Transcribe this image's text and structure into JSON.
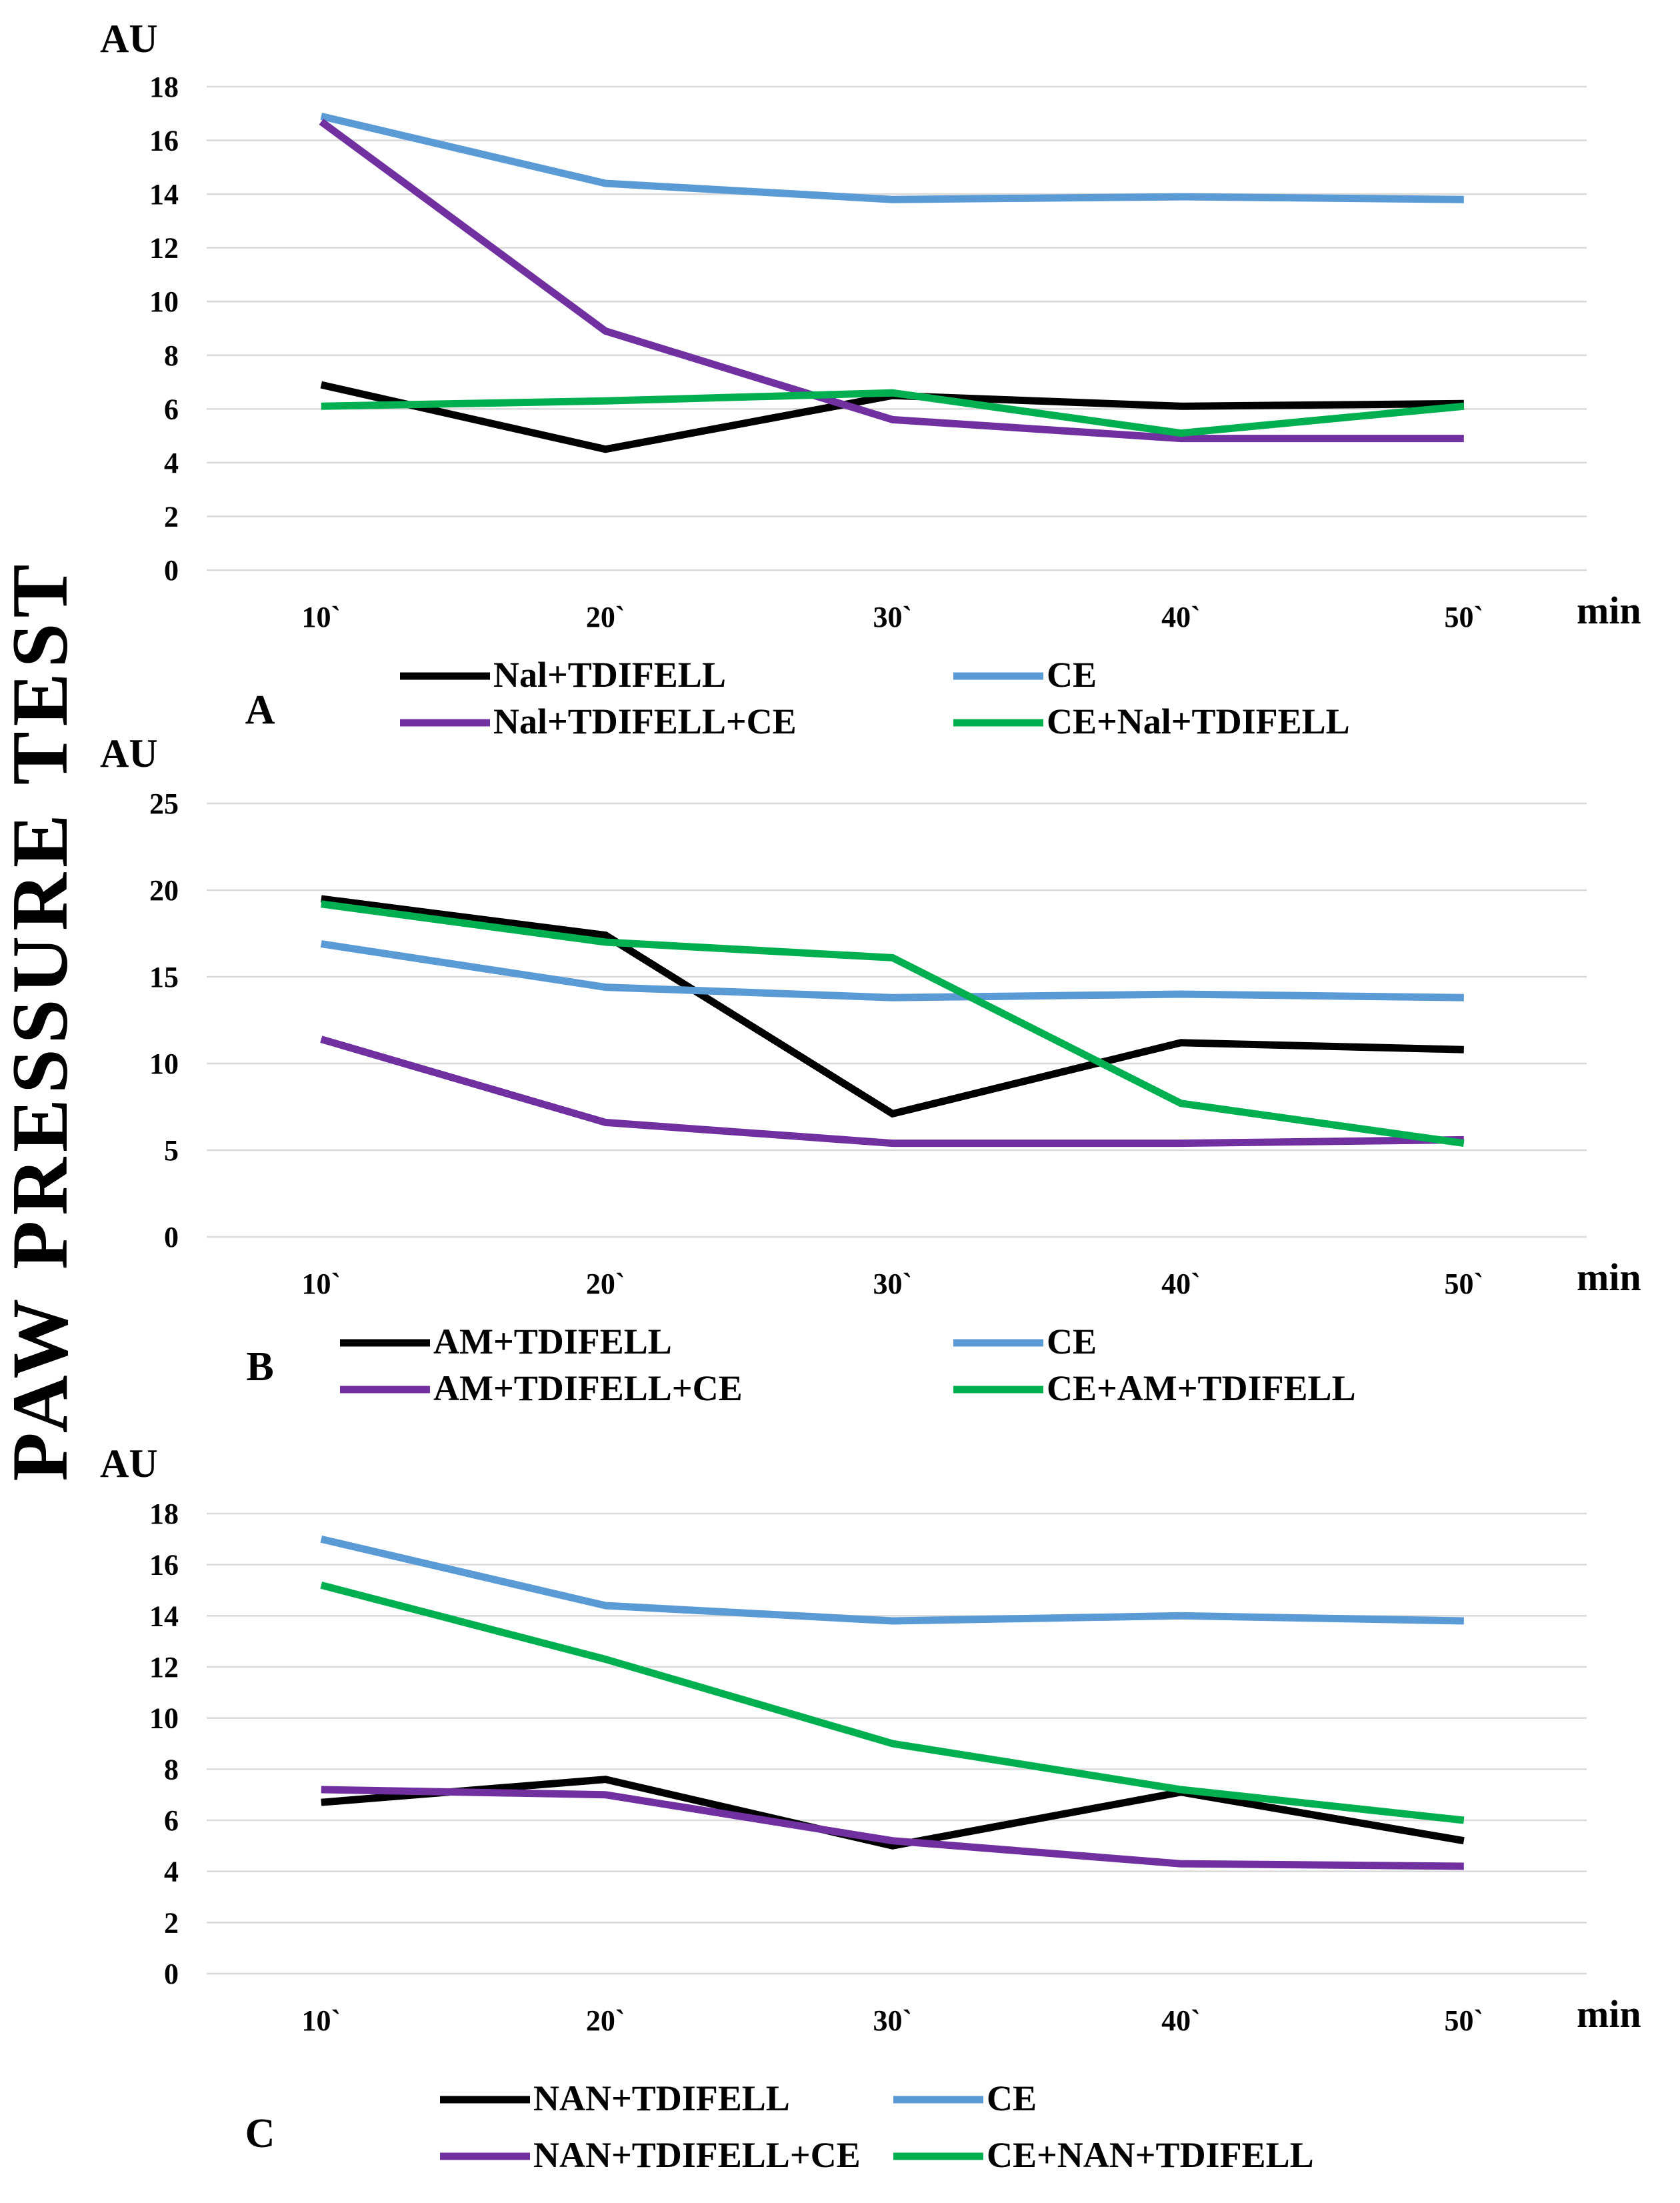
{
  "figure_title": "PAW   PRESSURE   TEST",
  "chart_data": [
    {
      "type": "line",
      "panel": "A",
      "ylabel": "AU",
      "xlabel": "min",
      "categories": [
        "10`",
        "20`",
        "30`",
        "40`",
        "50`"
      ],
      "ylim": [
        0,
        18
      ],
      "yticks": [
        0,
        2,
        4,
        6,
        8,
        10,
        12,
        14,
        16,
        18
      ],
      "grid": true,
      "series": [
        {
          "name": "Nal+TDIFELL",
          "color": "#000000",
          "values": [
            6.9,
            4.5,
            6.5,
            6.1,
            6.2
          ]
        },
        {
          "name": "CE",
          "color": "#5b9bd5",
          "values": [
            16.9,
            14.4,
            13.8,
            13.9,
            13.8
          ]
        },
        {
          "name": "Nal+TDIFELL+CE",
          "color": "#7030a0",
          "values": [
            16.7,
            8.9,
            5.6,
            4.9,
            4.9
          ]
        },
        {
          "name": "CE+Nal+TDIFELL",
          "color": "#00b050",
          "values": [
            6.1,
            6.3,
            6.6,
            5.1,
            6.1
          ]
        }
      ]
    },
    {
      "type": "line",
      "panel": "B",
      "ylabel": "AU",
      "xlabel": "min",
      "categories": [
        "10`",
        "20`",
        "30`",
        "40`",
        "50`"
      ],
      "ylim": [
        0,
        25
      ],
      "yticks": [
        0,
        5,
        10,
        15,
        20,
        25
      ],
      "grid": true,
      "series": [
        {
          "name": "AM+TDIFELL",
          "color": "#000000",
          "values": [
            19.5,
            17.4,
            7.1,
            11.2,
            10.8
          ]
        },
        {
          "name": "CE",
          "color": "#5b9bd5",
          "values": [
            16.9,
            14.4,
            13.8,
            14.0,
            13.8
          ]
        },
        {
          "name": "AM+TDIFELL+CE",
          "color": "#7030a0",
          "values": [
            11.4,
            6.6,
            5.4,
            5.4,
            5.6
          ]
        },
        {
          "name": "CE+AM+TDIFELL",
          "color": "#00b050",
          "values": [
            19.2,
            17.0,
            16.1,
            7.7,
            5.4
          ]
        }
      ]
    },
    {
      "type": "line",
      "panel": "C",
      "ylabel": "AU",
      "xlabel": "min",
      "categories": [
        "10`",
        "20`",
        "30`",
        "40`",
        "50`"
      ],
      "ylim": [
        0,
        18
      ],
      "yticks": [
        0,
        2,
        4,
        6,
        8,
        10,
        12,
        14,
        16,
        18
      ],
      "grid": true,
      "series": [
        {
          "name": "NAN+TDIFELL",
          "color": "#000000",
          "values": [
            6.7,
            7.6,
            5.0,
            7.1,
            5.2
          ]
        },
        {
          "name": "CE",
          "color": "#5b9bd5",
          "values": [
            17.0,
            14.4,
            13.8,
            14.0,
            13.8
          ]
        },
        {
          "name": "NAN+TDIFELL+CE",
          "color": "#7030a0",
          "values": [
            7.2,
            7.0,
            5.2,
            4.3,
            4.2
          ]
        },
        {
          "name": "CE+NAN+TDIFELL",
          "color": "#00b050",
          "values": [
            15.2,
            12.3,
            9.0,
            7.2,
            6.0
          ]
        }
      ]
    }
  ]
}
